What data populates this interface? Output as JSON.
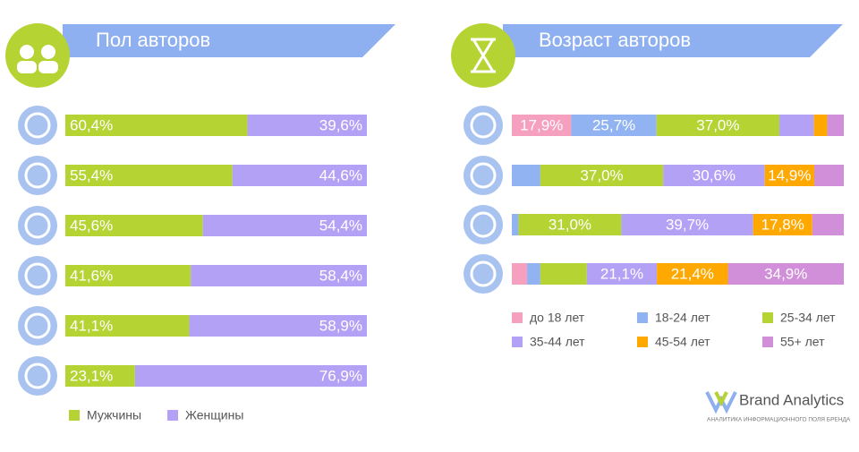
{
  "chart_data": [
    {
      "type": "bar",
      "stacked": true,
      "orientation": "horizontal",
      "title": "Пол авторов",
      "categories": [
        null,
        null,
        null,
        null,
        null,
        null
      ],
      "xlim": [
        0,
        100
      ],
      "series": [
        {
          "name": "Мужчины",
          "color": "#b6d334",
          "values": [
            60.4,
            55.4,
            45.6,
            41.6,
            41.1,
            23.1
          ],
          "value_labels": [
            "60,4%",
            "55,4%",
            "45,6%",
            "41,6%",
            "41,1%",
            "23,1%"
          ]
        },
        {
          "name": "Женщины",
          "color": "#b3a1f5",
          "values": [
            39.6,
            44.6,
            54.4,
            58.4,
            58.9,
            76.9
          ],
          "value_labels": [
            "39,6%",
            "44,6%",
            "54,4%",
            "58,4%",
            "58,9%",
            "76,9%"
          ]
        }
      ]
    },
    {
      "type": "bar",
      "stacked": true,
      "orientation": "horizontal",
      "title": "Возраст авторов",
      "categories": [
        null,
        null,
        null,
        null
      ],
      "xlim": [
        0,
        100
      ],
      "series": [
        {
          "name": "до 18 лет",
          "color": "#f6a0bf",
          "values": [
            17.9,
            0,
            0,
            4.6
          ],
          "value_labels": [
            "17,9%",
            null,
            null,
            null
          ]
        },
        {
          "name": "18-24 лет",
          "color": "#91b3f2",
          "values": [
            25.7,
            8.6,
            2,
            4
          ],
          "value_labels": [
            "25,7%",
            null,
            null,
            null
          ]
        },
        {
          "name": "25-34 лет",
          "color": "#b6d334",
          "values": [
            37.0,
            37.0,
            31.0,
            14
          ],
          "value_labels": [
            "37,0%",
            "37,0%",
            "31,0%",
            null
          ]
        },
        {
          "name": "35-44 лет",
          "color": "#b3a1f5",
          "values": [
            10.4,
            30.6,
            39.7,
            21.1
          ],
          "value_labels": [
            null,
            "30,6%",
            "39,7%",
            "21,1%"
          ]
        },
        {
          "name": "45-54 лет",
          "color": "#ffa800",
          "values": [
            4,
            14.9,
            17.8,
            21.4
          ],
          "value_labels": [
            null,
            "14,9%",
            "17,8%",
            "21,4%"
          ]
        },
        {
          "name": "55+ лет",
          "color": "#d18fd9",
          "values": [
            5,
            8.9,
            9.5,
            34.9
          ],
          "value_labels": [
            null,
            null,
            null,
            "34,9%"
          ]
        }
      ]
    }
  ],
  "brand": {
    "name": "Brand Analytics",
    "tagline": "АНАЛИТИКА ИНФОРМАЦИОННОГО ПОЛЯ БРЕНДА"
  }
}
